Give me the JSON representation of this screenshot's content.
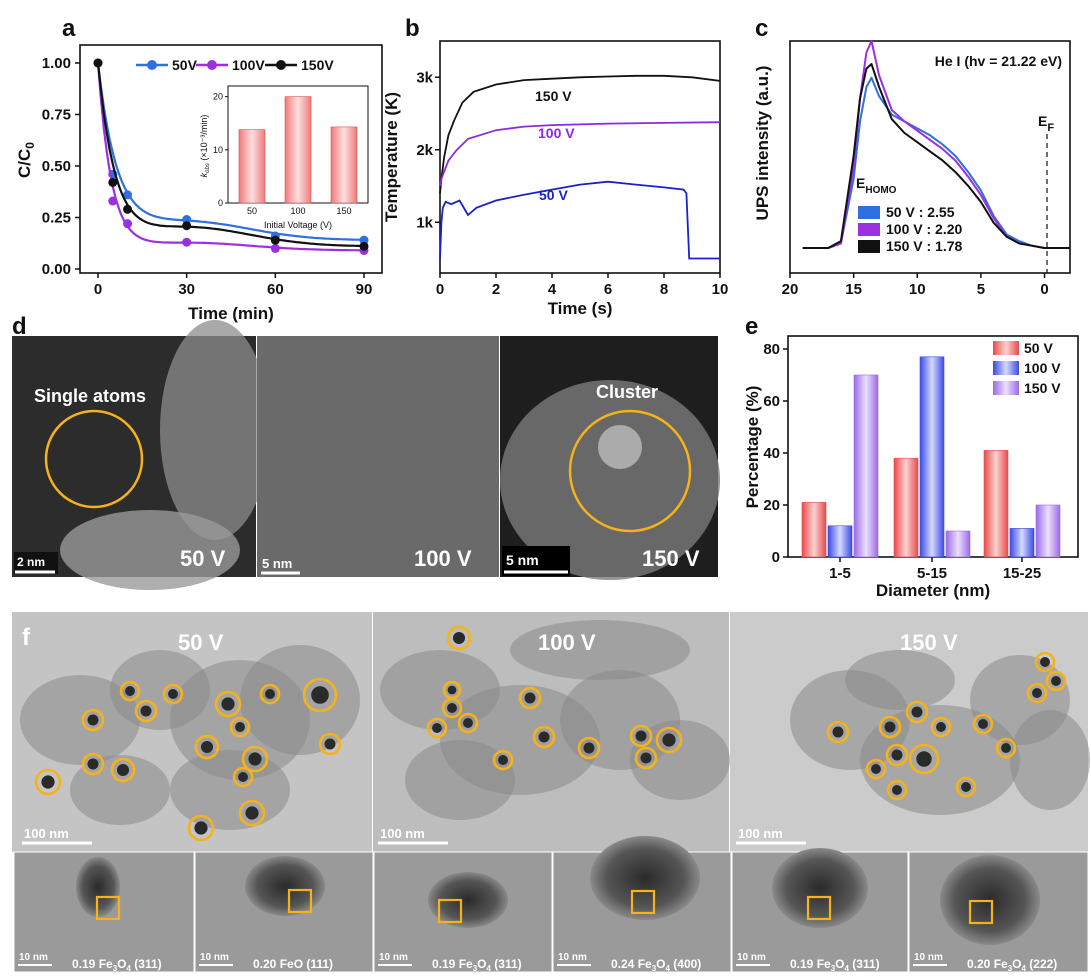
{
  "panels": {
    "a": "a",
    "b": "b",
    "c": "c",
    "d": "d",
    "e": "e",
    "f": "f"
  },
  "chart_data": [
    {
      "id": "a",
      "type": "line",
      "xlabel": "Time (min)",
      "ylabel": "C/C0",
      "xlim": [
        0,
        90
      ],
      "ylim": [
        0,
        1.0
      ],
      "xticks": [
        0,
        30,
        60,
        90
      ],
      "yticks": [
        "0.00",
        "0.25",
        "0.50",
        "0.75",
        "1.00"
      ],
      "legend_position": "top-right",
      "series": [
        {
          "name": "50V",
          "color": "#2f6fe0",
          "x": [
            0,
            5,
            10,
            30,
            60,
            90
          ],
          "y": [
            1.0,
            0.46,
            0.36,
            0.24,
            0.16,
            0.14
          ]
        },
        {
          "name": "100V",
          "color": "#9b30e0",
          "x": [
            0,
            5,
            10,
            30,
            60,
            90
          ],
          "y": [
            1.0,
            0.33,
            0.22,
            0.13,
            0.1,
            0.09
          ]
        },
        {
          "name": "150V",
          "color": "#111111",
          "x": [
            0,
            5,
            10,
            30,
            60,
            90
          ],
          "y": [
            1.0,
            0.42,
            0.29,
            0.21,
            0.14,
            0.11
          ]
        }
      ],
      "inset": {
        "type": "bar",
        "xlabel": "Initial Voltage (V)",
        "ylabel": "kobs (×10⁻³/min)",
        "ylabel_main": "k",
        "ylabel_sub": "obs",
        "ylabel_rest": " (×10⁻³/min)",
        "categories": [
          "50",
          "100",
          "150"
        ],
        "values": [
          13.8,
          20.0,
          14.3
        ],
        "ylim": [
          0,
          22
        ],
        "yticks": [
          "0",
          "10",
          "20"
        ]
      }
    },
    {
      "id": "b",
      "type": "line",
      "xlabel": "Time (s)",
      "ylabel": "Temperature (K)",
      "xlim": [
        0,
        10
      ],
      "ylim": [
        300,
        3500
      ],
      "xticks": [
        "0",
        "2",
        "4",
        "6",
        "8",
        "10"
      ],
      "ytick_values": [
        1000,
        2000,
        3000
      ],
      "ytick_labels": [
        "1k",
        "2k",
        "3k"
      ],
      "series": [
        {
          "name": "150 V",
          "color": "#111111",
          "x": [
            0,
            0.05,
            0.15,
            0.3,
            0.5,
            0.8,
            1.2,
            2,
            3,
            4,
            5,
            6,
            7,
            8,
            9,
            10
          ],
          "y": [
            1400,
            1600,
            1900,
            2200,
            2400,
            2650,
            2800,
            2900,
            2960,
            2980,
            3000,
            3010,
            3020,
            3020,
            3000,
            2950
          ]
        },
        {
          "name": "100 V",
          "color": "#8a2be2",
          "x": [
            0,
            0.05,
            0.15,
            0.3,
            0.6,
            1,
            2,
            3,
            4,
            6,
            8,
            10
          ],
          "y": [
            1500,
            1600,
            1700,
            1850,
            2000,
            2150,
            2270,
            2320,
            2340,
            2360,
            2370,
            2380
          ]
        },
        {
          "name": "50 V",
          "color": "#1a22c8",
          "x": [
            0,
            0.05,
            0.1,
            0.2,
            0.4,
            0.7,
            1,
            1.3,
            2,
            3,
            4,
            5,
            6,
            7,
            8,
            8.7,
            8.8,
            8.9,
            9.2,
            10
          ],
          "y": [
            500,
            1000,
            1200,
            1280,
            1250,
            1300,
            1100,
            1200,
            1300,
            1380,
            1450,
            1520,
            1560,
            1520,
            1480,
            1450,
            1400,
            500,
            500,
            500
          ]
        }
      ]
    },
    {
      "id": "c",
      "type": "line",
      "title": "He I (hv = 21.22 eV)",
      "xlabel": "",
      "ylabel": "UPS intensity (a.u.)",
      "xlim": [
        20,
        -2
      ],
      "xticks": [
        "20",
        "15",
        "10",
        "5",
        "0"
      ],
      "annotation": "E",
      "annotation_sub": "F",
      "legend_title": "E",
      "legend_title_sub": "HOMO",
      "series": [
        {
          "name": "50 V : 2.55",
          "color": "#2f6fe0",
          "x": [
            19,
            17,
            16,
            15,
            14.5,
            14,
            13.6,
            13,
            12,
            11,
            10,
            9,
            8,
            7,
            6,
            5,
            4,
            3,
            2,
            1,
            0,
            -1,
            -2
          ],
          "y": [
            0,
            0,
            0.02,
            0.3,
            0.55,
            0.7,
            0.74,
            0.66,
            0.58,
            0.55,
            0.52,
            0.49,
            0.45,
            0.4,
            0.33,
            0.25,
            0.14,
            0.06,
            0.03,
            0.01,
            0,
            0,
            0
          ]
        },
        {
          "name": "100 V : 2.20",
          "color": "#9b30e0",
          "x": [
            19,
            17,
            16,
            15,
            14.5,
            14,
            13.6,
            13,
            12,
            11,
            10,
            9,
            8,
            7,
            6,
            5,
            4,
            3,
            2,
            1,
            0,
            -1,
            -2
          ],
          "y": [
            0,
            0,
            0.02,
            0.35,
            0.65,
            0.85,
            0.9,
            0.75,
            0.6,
            0.55,
            0.51,
            0.47,
            0.43,
            0.38,
            0.31,
            0.23,
            0.13,
            0.05,
            0.02,
            0.01,
            0,
            0,
            0
          ]
        },
        {
          "name": "150 V : 1.78",
          "color": "#111111",
          "x": [
            19,
            17,
            16,
            15,
            14.5,
            14,
            13.6,
            13,
            12,
            11,
            10,
            9,
            8,
            7,
            6,
            5,
            4,
            3,
            2,
            1,
            0,
            -1,
            -2
          ],
          "y": [
            0,
            0,
            0.03,
            0.4,
            0.65,
            0.78,
            0.8,
            0.7,
            0.56,
            0.5,
            0.46,
            0.42,
            0.38,
            0.33,
            0.27,
            0.2,
            0.11,
            0.05,
            0.02,
            0.01,
            0,
            0,
            0
          ]
        }
      ]
    },
    {
      "id": "e",
      "type": "bar",
      "xlabel": "Diameter (nm)",
      "ylabel": "Percentage (%)",
      "ylim": [
        0,
        85
      ],
      "yticks": [
        "0",
        "20",
        "40",
        "60",
        "80"
      ],
      "categories": [
        "1-5",
        "5-15",
        "15-25"
      ],
      "legend_position": "top-right",
      "series": [
        {
          "name": "50 V",
          "color": "#e84a4a",
          "values": [
            21,
            38,
            41
          ]
        },
        {
          "name": "100 V",
          "color": "#3a4ae8",
          "values": [
            12,
            77,
            11
          ]
        },
        {
          "name": "150 V",
          "color": "#9b6ae8",
          "values": [
            70,
            10,
            20
          ]
        }
      ]
    }
  ],
  "d": {
    "labels": [
      "50 V",
      "100 V",
      "150 V"
    ],
    "scalebars": [
      "2 nm",
      "5 nm",
      "5 nm"
    ],
    "annotations": [
      "Single atoms",
      "Cluster"
    ]
  },
  "f": {
    "labels": [
      "50 V",
      "100 V",
      "150 V"
    ],
    "scalebar": "100 nm",
    "hrtem": [
      {
        "scale": "10 nm",
        "d": "0.19",
        "phase": "Fe",
        "sub1": "3",
        "mid": "O",
        "sub2": "4",
        "hkl": "(311)"
      },
      {
        "scale": "10 nm",
        "d": "0.20",
        "phase": "FeO",
        "sub1": "",
        "mid": "",
        "sub2": "",
        "hkl": "(111)"
      },
      {
        "scale": "10 nm",
        "d": "0.19",
        "phase": "Fe",
        "sub1": "3",
        "mid": "O",
        "sub2": "4",
        "hkl": "(311)"
      },
      {
        "scale": "10 nm",
        "d": "0.24",
        "phase": "Fe",
        "sub1": "3",
        "mid": "O",
        "sub2": "4",
        "hkl": "(400)"
      },
      {
        "scale": "10 nm",
        "d": "0.19",
        "phase": "Fe",
        "sub1": "3",
        "mid": "O",
        "sub2": "4",
        "hkl": "(311)"
      },
      {
        "scale": "10 nm",
        "d": "0.20",
        "phase": "Fe",
        "sub1": "3",
        "mid": "O",
        "sub2": "4",
        "hkl": "(222)"
      }
    ]
  },
  "colors": {
    "highlight": "#f5b21a",
    "micro_bg": "#3a3a3a",
    "tem_bg": "#b8b8b8"
  }
}
